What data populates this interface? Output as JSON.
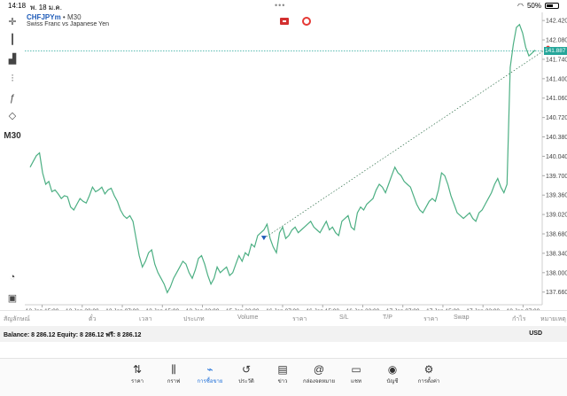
{
  "status_bar": {
    "time": "14:18",
    "date": "พ. 18 ม.ค.",
    "battery": "50%"
  },
  "toolbar": {
    "tools": [
      {
        "name": "crosshair-icon",
        "glyph": "✛"
      },
      {
        "name": "candles-icon",
        "glyph": "┃"
      },
      {
        "name": "volume-icon",
        "glyph": "▟"
      },
      {
        "name": "indicators-icon",
        "glyph": "⫶"
      },
      {
        "name": "function-icon",
        "glyph": "ƒ"
      },
      {
        "name": "objects-icon",
        "glyph": "◇"
      },
      {
        "name": "timeframe",
        "glyph": "M30"
      },
      {
        "name": "chart-settings-icon",
        "glyph": "◔"
      },
      {
        "name": "trade-icon",
        "glyph": "▣"
      }
    ]
  },
  "chart": {
    "symbol": "CHFJPYm",
    "separator": "•",
    "timeframe": "M30",
    "description": "Swiss Franc vs Japanese Yen",
    "current_price": "141.887",
    "line_color": "#4caf83",
    "price_line_color": "#26a69a",
    "accent_color": "#1e6fd9"
  },
  "chart_data": {
    "type": "line",
    "ylim": [
      137.5,
      142.5
    ],
    "y_ticks": [
      "142.420",
      "142.080",
      "141.740",
      "141.400",
      "141.060",
      "140.720",
      "140.380",
      "140.040",
      "139.700",
      "139.360",
      "139.020",
      "138.680",
      "138.340",
      "138.000",
      "137.660"
    ],
    "y_tick_values": [
      142.42,
      142.08,
      141.74,
      141.4,
      141.06,
      140.72,
      140.38,
      140.04,
      139.7,
      139.36,
      139.02,
      138.68,
      138.34,
      138.0,
      137.66
    ],
    "x_ticks": [
      "12 Jan 15:00",
      "12 Jan 23:00",
      "13 Jan 07:00",
      "13 Jan 15:00",
      "13 Jan 23:00",
      "15 Jan 23:00",
      "16 Jan 07:00",
      "16 Jan 15:00",
      "16 Jan 23:00",
      "17 Jan 07:00",
      "17 Jan 15:00",
      "17 Jan 23:00",
      "18 Jan 07:00"
    ],
    "x_tick_index": [
      3,
      13,
      23,
      33,
      43,
      53,
      63,
      73,
      83,
      93,
      103,
      113,
      123
    ],
    "series": [
      {
        "values": [
          139.85,
          139.95,
          140.05,
          140.1,
          139.75,
          139.55,
          139.6,
          139.42,
          139.45,
          139.38,
          139.3,
          139.35,
          139.33,
          139.15,
          139.1,
          139.2,
          139.3,
          139.25,
          139.22,
          139.35,
          139.5,
          139.42,
          139.45,
          139.5,
          139.38,
          139.45,
          139.48,
          139.35,
          139.25,
          139.1,
          139.0,
          138.95,
          139.0,
          138.9,
          138.6,
          138.3,
          138.1,
          138.2,
          138.35,
          138.4,
          138.15,
          138.0,
          137.9,
          137.8,
          137.65,
          137.75,
          137.9,
          138.0,
          138.1,
          138.2,
          138.15,
          138.0,
          137.9,
          138.05,
          138.25,
          138.3,
          138.15,
          137.95,
          137.8,
          137.9,
          138.1,
          138.0,
          138.05,
          138.1,
          137.95,
          138.0,
          138.15,
          138.3,
          138.2,
          138.35,
          138.3,
          138.5,
          138.45,
          138.65,
          138.7,
          138.75,
          138.85,
          138.6,
          138.45,
          138.35,
          138.7,
          138.8,
          138.6,
          138.65,
          138.75,
          138.8,
          138.7,
          138.75,
          138.8,
          138.85,
          138.9,
          138.8,
          138.75,
          138.7,
          138.8,
          138.9,
          138.75,
          138.8,
          138.7,
          138.65,
          138.9,
          138.95,
          139.0,
          138.8,
          138.75,
          139.05,
          139.15,
          139.1,
          139.2,
          139.25,
          139.3,
          139.45,
          139.55,
          139.5,
          139.4,
          139.55,
          139.7,
          139.85,
          139.75,
          139.7,
          139.6,
          139.55,
          139.5,
          139.35,
          139.2,
          139.1,
          139.05,
          139.15,
          139.25,
          139.3,
          139.25,
          139.45,
          139.75,
          139.7,
          139.55,
          139.35,
          139.2,
          139.05,
          139.0,
          138.95,
          139.0,
          139.05,
          138.95,
          138.9,
          139.05,
          139.1,
          139.2,
          139.3,
          139.4,
          139.55,
          139.65,
          139.5,
          139.4,
          139.55,
          141.6,
          142.0,
          142.3,
          142.35,
          142.2,
          141.95,
          141.8,
          141.85,
          141.9
        ],
        "x_index_offset": 0
      }
    ],
    "dotted_trend": {
      "from_index": 75,
      "from_value": 138.6,
      "to_index": 165,
      "to_value": 141.9
    },
    "current_price": 141.887,
    "grid": false
  },
  "positions_header": {
    "columns": [
      "สัญลักษณ์",
      "ตั๋ว",
      "เวลา",
      "ประเภท",
      "Volume",
      "ราคา",
      "S/L",
      "T/P",
      "ราคา",
      "Swap",
      "กำไร",
      "หมายเหตุ"
    ]
  },
  "account": {
    "summary": "Balance: 8 286.12 Equity: 8 286.12 ฟรี: 8 286.12",
    "currency": "USD"
  },
  "tabs": [
    {
      "name": "quotes",
      "icon": "⇅",
      "label": "ราคา",
      "active": false
    },
    {
      "name": "chart",
      "icon": "⫼",
      "label": "กราฟ",
      "active": false
    },
    {
      "name": "trade",
      "icon": "⌁",
      "label": "การซื้อขาย",
      "active": true
    },
    {
      "name": "history",
      "icon": "↺",
      "label": "ประวัติ",
      "active": false
    },
    {
      "name": "news",
      "icon": "▤",
      "label": "ข่าว",
      "active": false
    },
    {
      "name": "mailbox",
      "icon": "@",
      "label": "กล่องจดหมาย",
      "active": false
    },
    {
      "name": "chat",
      "icon": "▭",
      "label": "แชท",
      "active": false
    },
    {
      "name": "account",
      "icon": "◉",
      "label": "บัญชี",
      "active": false
    },
    {
      "name": "settings",
      "icon": "⚙",
      "label": "การตั้งค่า",
      "active": false
    }
  ]
}
